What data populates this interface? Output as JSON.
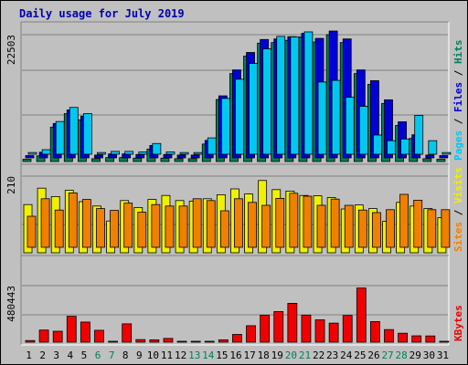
{
  "chart_data": {
    "type": "bar",
    "title": "Daily usage for July 2019",
    "categories": [
      "1",
      "2",
      "3",
      "4",
      "5",
      "6",
      "7",
      "8",
      "9",
      "10",
      "11",
      "12",
      "13",
      "14",
      "15",
      "16",
      "17",
      "18",
      "19",
      "20",
      "21",
      "22",
      "23",
      "24",
      "25",
      "26",
      "27",
      "28",
      "29",
      "30",
      "31"
    ],
    "weekend_days": [
      "6",
      "7",
      "13",
      "14",
      "20",
      "21",
      "27",
      "28"
    ],
    "panels": [
      {
        "id": "top",
        "ymax": 22503,
        "ymax_label": "22503",
        "right_label": [
          {
            "text": "Pages",
            "color": "#00c8f0"
          },
          {
            "text": " / ",
            "color": "#000000"
          },
          {
            "text": "Files",
            "color": "#0000d8"
          },
          {
            "text": " / ",
            "color": "#000000"
          },
          {
            "text": "Hits",
            "color": "#00805c"
          }
        ],
        "series": [
          {
            "name": "Hits",
            "color": "#00805c",
            "values": [
              400,
              1000,
              6100,
              8500,
              7400,
              500,
              700,
              700,
              600,
              2200,
              600,
              500,
              500,
              3100,
              11000,
              15600,
              18700,
              21000,
              21100,
              21500,
              22100,
              21200,
              22500,
              21100,
              15600,
              13700,
              10300,
              6400,
              4100,
              500,
              400
            ]
          },
          {
            "name": "Files",
            "color": "#0000d8",
            "values": [
              400,
              1000,
              6100,
              8500,
              7400,
              500,
              700,
              700,
              600,
              2200,
              600,
              500,
              500,
              3100,
              11000,
              15600,
              18700,
              21000,
              21100,
              21500,
              22100,
              21200,
              22500,
              21100,
              15600,
              13700,
              10300,
              6400,
              4100,
              500,
              400
            ]
          },
          {
            "name": "Pages",
            "color": "#00c8f0",
            "values": [
              300,
              800,
              5800,
              8300,
              7200,
              300,
              500,
              500,
              400,
              1900,
              400,
              300,
              300,
              2900,
              9900,
              13300,
              16100,
              18700,
              20900,
              20800,
              21700,
              12800,
              13100,
              10100,
              8500,
              3400,
              2400,
              2700,
              6900,
              2400,
              300
            ]
          }
        ]
      },
      {
        "id": "mid",
        "ymax": 210,
        "ymax_label": "210",
        "right_label": [
          {
            "text": "Sites",
            "color": "#f08000"
          },
          {
            "text": " / ",
            "color": "#000000"
          },
          {
            "text": "Visits",
            "color": "#f0f000"
          }
        ],
        "series": [
          {
            "name": "Visits",
            "color": "#f0f000",
            "values": [
              132,
              177,
              154,
              171,
              140,
              128,
              87,
              143,
              124,
              146,
              157,
              143,
              141,
              148,
              159,
              175,
              161,
              198,
              173,
              169,
              157,
              156,
              151,
              120,
              131,
              121,
              86,
              138,
              128,
              121,
              96
            ]
          },
          {
            "name": "Sites",
            "color": "#f08000",
            "values": [
              85,
              133,
              102,
              149,
              131,
              106,
              101,
              121,
              96,
              117,
              113,
              113,
              133,
              128,
              100,
              133,
              123,
              115,
              134,
              148,
              140,
              115,
              132,
              115,
              102,
              95,
              103,
              145,
              129,
              103,
              103
            ]
          }
        ]
      },
      {
        "id": "bot",
        "ymax": 480443,
        "ymax_label": "480443",
        "right_label": [
          {
            "text": "KBytes",
            "color": "#f00000"
          }
        ],
        "series": [
          {
            "name": "KBytes",
            "color": "#f00000",
            "values": [
              14000,
              103000,
              93000,
              220000,
              171000,
              101000,
              0,
              156000,
              22000,
              20000,
              32000,
              5000,
              6000,
              0,
              20000,
              66000,
              140000,
              230000,
              260000,
              330000,
              230000,
              190000,
              162000,
              227000,
              460000,
              175000,
              107000,
              76000,
              54000,
              53000,
              0
            ]
          }
        ]
      }
    ]
  }
}
